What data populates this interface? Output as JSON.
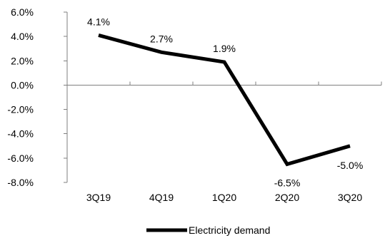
{
  "chart_data": {
    "type": "line",
    "title": "",
    "xlabel": "",
    "ylabel": "",
    "categories": [
      "3Q19",
      "4Q19",
      "1Q20",
      "2Q20",
      "3Q20"
    ],
    "series": [
      {
        "name": "Electricity demand",
        "values": [
          4.1,
          2.7,
          1.9,
          -6.5,
          -5.0
        ],
        "data_labels": [
          "4.1%",
          "2.7%",
          "1.9%",
          "-6.5%",
          "-5.0%"
        ],
        "color": "#000000"
      }
    ],
    "ylim": [
      -8.0,
      6.0
    ],
    "yticks": [
      6.0,
      4.0,
      2.0,
      0.0,
      -2.0,
      -4.0,
      -6.0,
      -8.0
    ],
    "ytick_labels": [
      "6.0%",
      "4.0%",
      "2.0%",
      "0.0%",
      "-2.0%",
      "-4.0%",
      "-6.0%",
      "-8.0%"
    ],
    "grid": false,
    "legend": "bottom-center"
  }
}
